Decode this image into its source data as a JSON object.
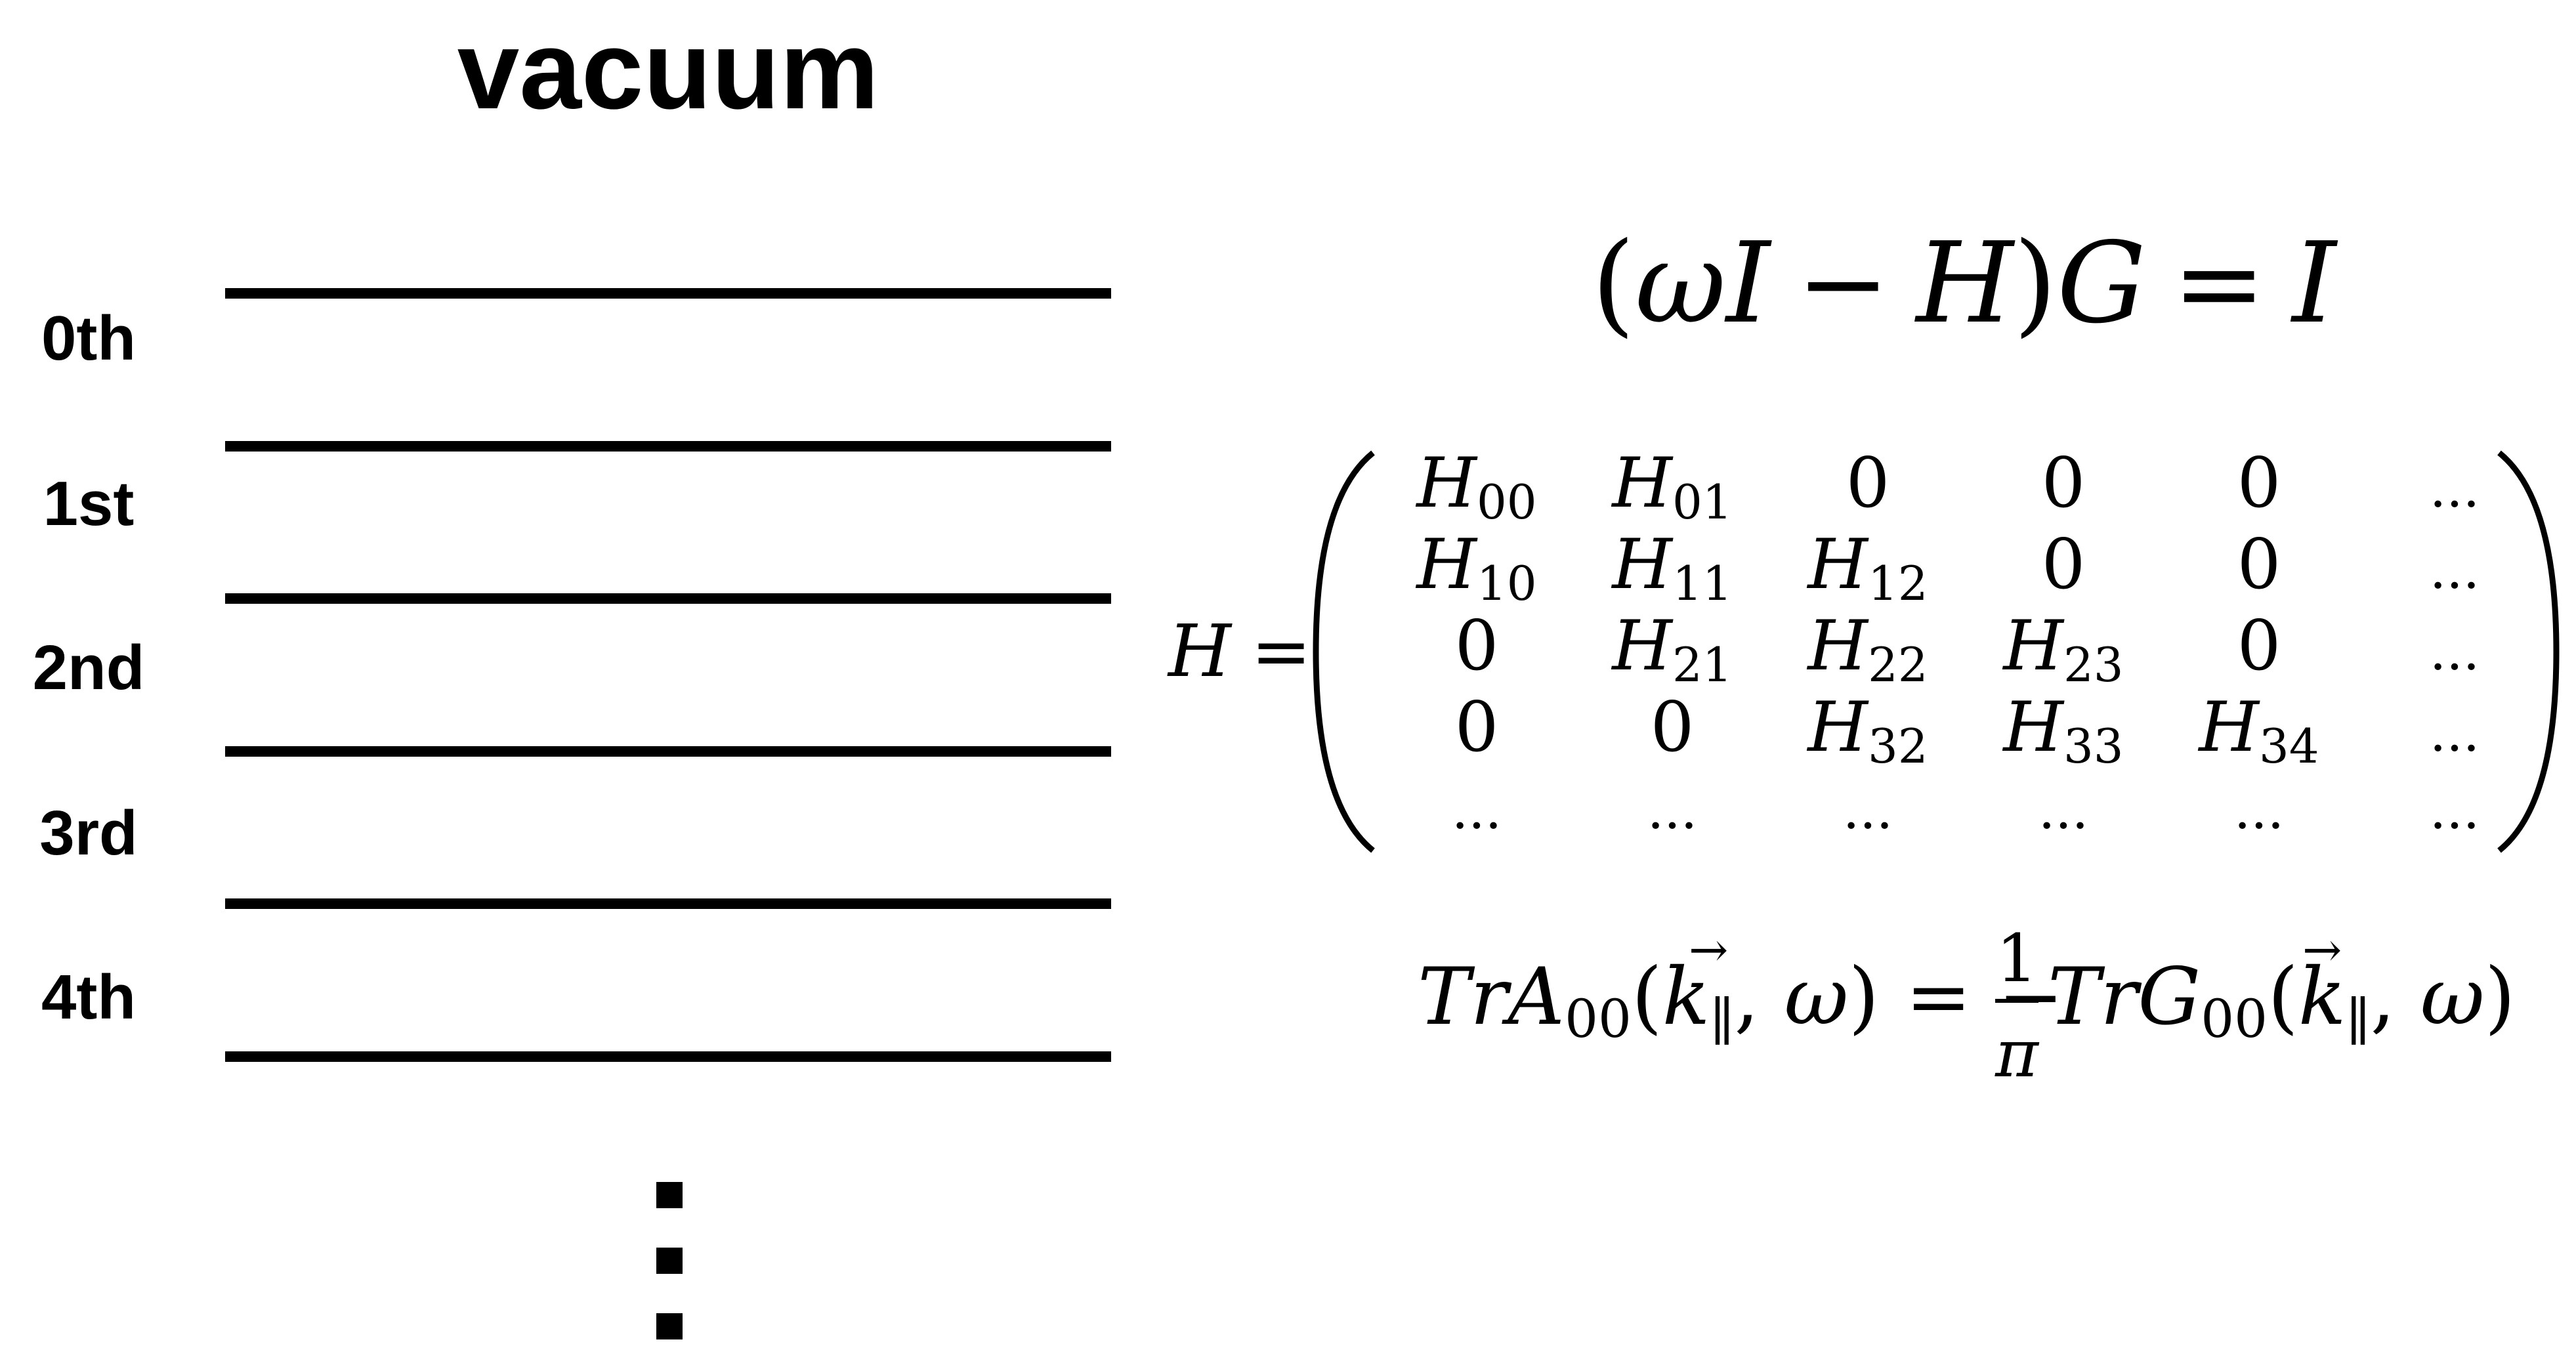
{
  "title": "vacuum",
  "layers": [
    "0th",
    "1st",
    "2nd",
    "3rd",
    "4th"
  ],
  "equations": {
    "green_eq": {
      "lhs_open": "(",
      "w": "ω",
      "I1": "I",
      "minus": "−",
      "H": "H",
      "close": ")",
      "G": "G",
      "eq": "=",
      "I2": "I"
    },
    "h_lhs": {
      "H": "H",
      "eq": "="
    },
    "spectral": {
      "tr1": "Tr",
      "A": "A",
      "sub1": "00",
      "open1": "(",
      "k1": "k",
      "par1": "∥",
      "comma1": ", ",
      "w1": "ω",
      "close1": ")",
      "eq": "=",
      "minus": "−",
      "num": "1",
      "den": "π",
      "tr2": "Tr",
      "G": "G",
      "sub2": "00",
      "open2": "(",
      "k2": "k",
      "par2": "∥",
      "comma2": ", ",
      "w2": "ω",
      "close2": ")",
      "arrow": "→"
    }
  },
  "matrix": [
    [
      {
        "t": "H",
        "s": "00"
      },
      {
        "t": "H",
        "s": "01"
      },
      {
        "t": "0"
      },
      {
        "t": "0"
      },
      {
        "t": "0"
      },
      {
        "t": "..."
      }
    ],
    [
      {
        "t": "H",
        "s": "10"
      },
      {
        "t": "H",
        "s": "11"
      },
      {
        "t": "H",
        "s": "12"
      },
      {
        "t": "0"
      },
      {
        "t": "0"
      },
      {
        "t": "..."
      }
    ],
    [
      {
        "t": "0"
      },
      {
        "t": "H",
        "s": "21"
      },
      {
        "t": "H",
        "s": "22"
      },
      {
        "t": "H",
        "s": "23"
      },
      {
        "t": "0"
      },
      {
        "t": "..."
      }
    ],
    [
      {
        "t": "0"
      },
      {
        "t": "0"
      },
      {
        "t": "H",
        "s": "32"
      },
      {
        "t": "H",
        "s": "33"
      },
      {
        "t": "H",
        "s": "34"
      },
      {
        "t": "..."
      }
    ],
    [
      {
        "t": "..."
      },
      {
        "t": "..."
      },
      {
        "t": "..."
      },
      {
        "t": "..."
      },
      {
        "t": "..."
      },
      {
        "t": "..."
      }
    ]
  ]
}
